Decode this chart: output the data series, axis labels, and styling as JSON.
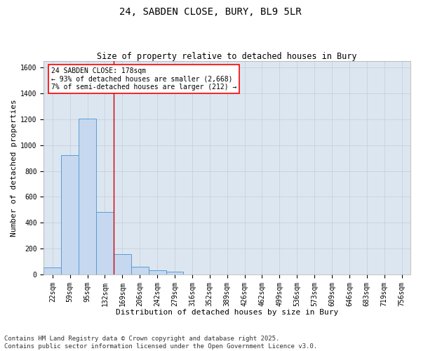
{
  "title_line1": "24, SABDEN CLOSE, BURY, BL9 5LR",
  "title_line2": "Size of property relative to detached houses in Bury",
  "xlabel": "Distribution of detached houses by size in Bury",
  "ylabel": "Number of detached properties",
  "categories": [
    "22sqm",
    "59sqm",
    "95sqm",
    "132sqm",
    "169sqm",
    "206sqm",
    "242sqm",
    "279sqm",
    "316sqm",
    "352sqm",
    "389sqm",
    "426sqm",
    "462sqm",
    "499sqm",
    "536sqm",
    "573sqm",
    "609sqm",
    "646sqm",
    "683sqm",
    "719sqm",
    "756sqm"
  ],
  "bar_heights": [
    55,
    920,
    1205,
    480,
    155,
    58,
    33,
    20,
    0,
    0,
    0,
    0,
    0,
    0,
    0,
    0,
    0,
    0,
    0,
    0,
    0
  ],
  "bar_color": "#c5d8f0",
  "bar_edge_color": "#5b9bd5",
  "grid_color": "#c8d0dc",
  "bg_color": "#dce6f0",
  "annotation_box_text": "24 SABDEN CLOSE: 178sqm\n← 93% of detached houses are smaller (2,668)\n7% of semi-detached houses are larger (212) →",
  "vline_x_index": 4,
  "vline_color": "#cc0000",
  "ylim": [
    0,
    1650
  ],
  "yticks": [
    0,
    200,
    400,
    600,
    800,
    1000,
    1200,
    1400,
    1600
  ],
  "footnote": "Contains HM Land Registry data © Crown copyright and database right 2025.\nContains public sector information licensed under the Open Government Licence v3.0.",
  "footnote_fontsize": 6.5,
  "title_fontsize": 10,
  "subtitle_fontsize": 8.5,
  "axis_label_fontsize": 8,
  "tick_fontsize": 7,
  "annotation_fontsize": 7
}
